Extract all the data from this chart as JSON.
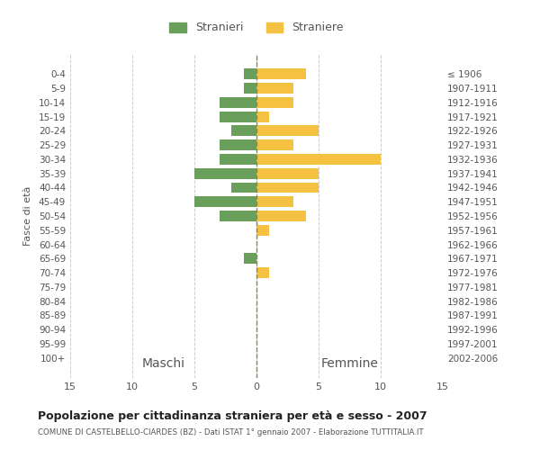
{
  "age_groups": [
    "0-4",
    "5-9",
    "10-14",
    "15-19",
    "20-24",
    "25-29",
    "30-34",
    "35-39",
    "40-44",
    "45-49",
    "50-54",
    "55-59",
    "60-64",
    "65-69",
    "70-74",
    "75-79",
    "80-84",
    "85-89",
    "90-94",
    "95-99",
    "100+"
  ],
  "birth_years": [
    "2002-2006",
    "1997-2001",
    "1992-1996",
    "1987-1991",
    "1982-1986",
    "1977-1981",
    "1972-1976",
    "1967-1971",
    "1962-1966",
    "1957-1961",
    "1952-1956",
    "1947-1951",
    "1942-1946",
    "1937-1941",
    "1932-1936",
    "1927-1931",
    "1922-1926",
    "1917-1921",
    "1912-1916",
    "1907-1911",
    "≤ 1906"
  ],
  "males": [
    1,
    1,
    3,
    3,
    2,
    3,
    3,
    5,
    2,
    5,
    3,
    0,
    0,
    1,
    0,
    0,
    0,
    0,
    0,
    0,
    0
  ],
  "females": [
    4,
    3,
    3,
    1,
    5,
    3,
    10,
    5,
    5,
    3,
    4,
    1,
    0,
    0,
    1,
    0,
    0,
    0,
    0,
    0,
    0
  ],
  "male_color": "#6a9e5b",
  "female_color": "#f5c141",
  "grid_color": "#cccccc",
  "center_line_color": "#888855",
  "xlim": 15,
  "title": "Popolazione per cittadinanza straniera per età e sesso - 2007",
  "subtitle": "COMUNE DI CASTELBELLO-CIARDES (BZ) - Dati ISTAT 1° gennaio 2007 - Elaborazione TUTTITALIA.IT",
  "left_label": "Maschi",
  "right_label": "Femmine",
  "ylabel": "Fasce di età",
  "legend_male": "Stranieri",
  "legend_female": "Straniere",
  "bg_color": "#ffffff",
  "text_color": "#555555"
}
